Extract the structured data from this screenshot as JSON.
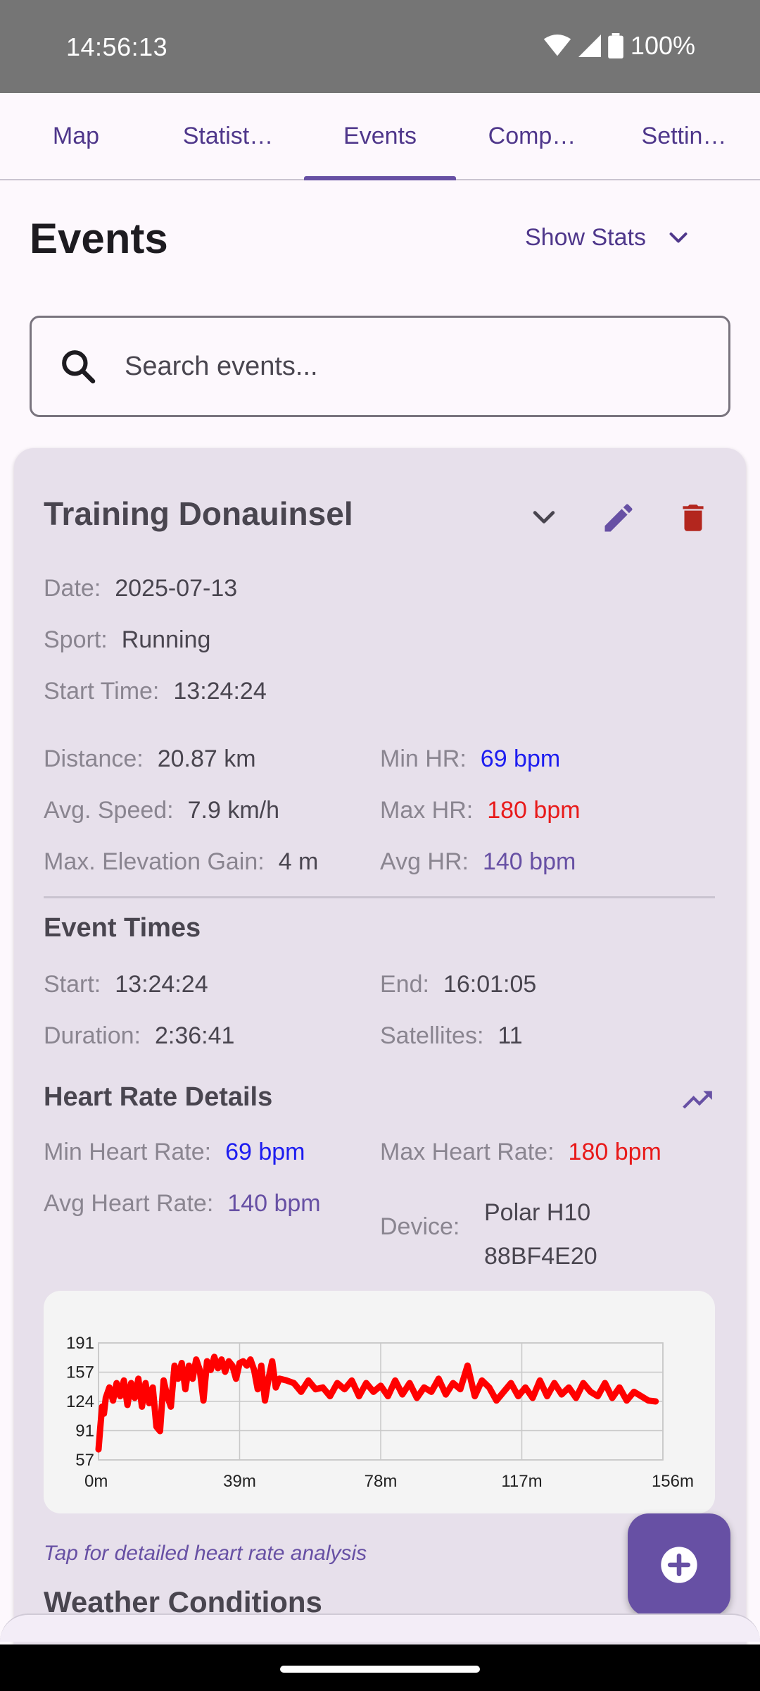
{
  "status_bar": {
    "time": "14:56:13",
    "battery": "100%"
  },
  "tabs": [
    {
      "label": "Map"
    },
    {
      "label": "Statist…"
    },
    {
      "label": "Events"
    },
    {
      "label": "Comp…"
    },
    {
      "label": "Settin…"
    }
  ],
  "active_tab": "Events",
  "header": {
    "title": "Events",
    "show_stats": "Show Stats"
  },
  "search": {
    "placeholder": "Search events..."
  },
  "event": {
    "title": "Training Donauinsel",
    "date_label": "Date:",
    "date": "2025-07-13",
    "sport_label": "Sport:",
    "sport": "Running",
    "start_time_label": "Start Time:",
    "start_time": "13:24:24",
    "distance_label": "Distance:",
    "distance": "20.87 km",
    "avg_speed_label": "Avg. Speed:",
    "avg_speed": "7.9 km/h",
    "elev_label": "Max. Elevation Gain:",
    "elev": "4 m",
    "min_hr_label": "Min HR:",
    "min_hr": "69 bpm",
    "max_hr_label": "Max HR:",
    "max_hr": "180 bpm",
    "avg_hr_label": "Avg HR:",
    "avg_hr": "140 bpm",
    "times": {
      "title": "Event Times",
      "start_label": "Start:",
      "start": "13:24:24",
      "end_label": "End:",
      "end": "16:01:05",
      "duration_label": "Duration:",
      "duration": "2:36:41",
      "satellites_label": "Satellites:",
      "satellites": "11"
    },
    "hr_details": {
      "title": "Heart Rate Details",
      "min_label": "Min Heart Rate:",
      "min": "69 bpm",
      "max_label": "Max Heart Rate:",
      "max": "180 bpm",
      "avg_label": "Avg Heart Rate:",
      "avg": "140 bpm",
      "device_label": "Device:",
      "device_line1": "Polar H10",
      "device_line2": "88BF4E20"
    },
    "tap_note": "Tap for detailed heart rate analysis",
    "weather_title": "Weather Conditions"
  },
  "colors": {
    "accent": "#6750a4",
    "min_hr": "#1d1df0",
    "max_hr": "#e81a1a",
    "delete": "#b3261e",
    "series": "#ff0000"
  },
  "icons": {
    "search": "search-icon",
    "expand": "chevron-down-icon",
    "edit": "pencil-icon",
    "delete": "trash-icon",
    "trend": "trending-up-icon",
    "add": "add-icon"
  },
  "chart_data": {
    "type": "line",
    "x_tick_labels": [
      "0m",
      "39m",
      "78m",
      "117m",
      "156m"
    ],
    "y_tick_labels": [
      "191",
      "157",
      "124",
      "91",
      "57"
    ],
    "xlim": [
      0,
      156
    ],
    "ylim": [
      57,
      191
    ],
    "grid": true,
    "series": [
      {
        "x": [
          0,
          0.5,
          1,
          1.5,
          2,
          3,
          4,
          5,
          6,
          7,
          8,
          9,
          10,
          11,
          12,
          13,
          14,
          15,
          16,
          17,
          18,
          19,
          20,
          21,
          22,
          23,
          24,
          25,
          26,
          27,
          28,
          29,
          30,
          31,
          32,
          33,
          34,
          35,
          36,
          37,
          38,
          39,
          40,
          41,
          42,
          43,
          44,
          45,
          46,
          47,
          48,
          49,
          50,
          52,
          54,
          56,
          58,
          60,
          62,
          64,
          66,
          68,
          70,
          72,
          74,
          76,
          78,
          80,
          82,
          84,
          86,
          88,
          90,
          92,
          94,
          96,
          98,
          100,
          102,
          104,
          106,
          108,
          110,
          112,
          114,
          116,
          118,
          120,
          122,
          124,
          126,
          128,
          130,
          132,
          134,
          136,
          138,
          140,
          142,
          144,
          146,
          148,
          150,
          152,
          154
        ],
        "y": [
          69,
          95,
          118,
          110,
          128,
          140,
          125,
          145,
          130,
          148,
          120,
          145,
          128,
          150,
          118,
          145,
          122,
          140,
          95,
          90,
          148,
          130,
          118,
          165,
          150,
          168,
          138,
          165,
          150,
          172,
          160,
          125,
          170,
          160,
          175,
          162,
          172,
          158,
          170,
          165,
          150,
          168,
          170,
          165,
          172,
          160,
          138,
          165,
          125,
          150,
          170,
          140,
          150,
          148,
          145,
          135,
          148,
          138,
          140,
          130,
          145,
          138,
          148,
          130,
          145,
          135,
          142,
          130,
          148,
          132,
          145,
          128,
          140,
          135,
          150,
          132,
          145,
          138,
          165,
          130,
          148,
          140,
          125,
          135,
          145,
          130,
          140,
          128,
          148,
          130,
          145,
          132,
          140,
          128,
          145,
          135,
          130,
          145,
          128,
          140,
          125,
          135,
          130,
          125,
          124
        ]
      }
    ]
  }
}
